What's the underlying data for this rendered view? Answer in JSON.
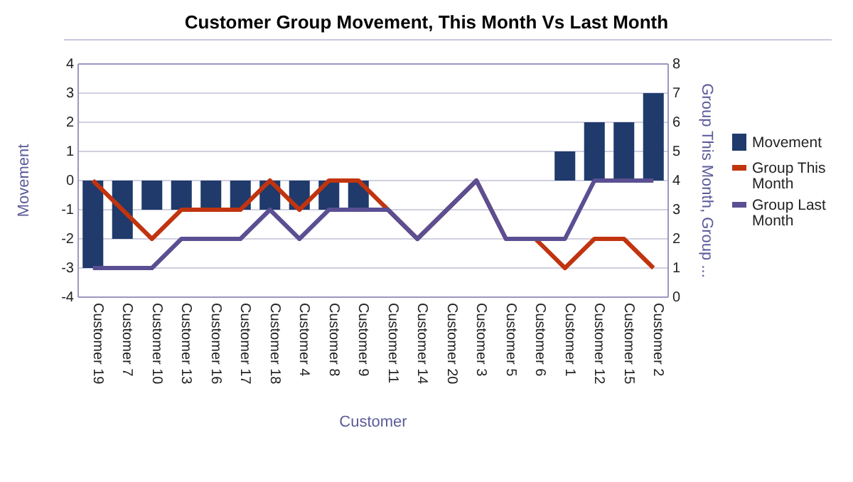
{
  "chart_data": {
    "type": "bar",
    "title": "Customer Group Movement, This Month Vs Last Month",
    "xlabel": "Customer",
    "ylabel": "Movement",
    "y2label": "Group This Month, Group ...",
    "categories": [
      "Customer 19",
      "Customer 7",
      "Customer 10",
      "Customer 13",
      "Customer 16",
      "Customer 17",
      "Customer 18",
      "Customer 4",
      "Customer 8",
      "Customer 9",
      "Customer 11",
      "Customer 14",
      "Customer 20",
      "Customer 3",
      "Customer 5",
      "Customer 6",
      "Customer 1",
      "Customer 12",
      "Customer 15",
      "Customer 2"
    ],
    "series": [
      {
        "name": "Movement",
        "color": "#1f3a6b",
        "values": [
          -3,
          -2,
          -1,
          -1,
          -1,
          -1,
          -1,
          -1,
          -1,
          -1,
          0,
          0,
          0,
          0,
          0,
          0,
          1,
          2,
          2,
          3
        ]
      },
      {
        "name": "Group This Month",
        "type": "line",
        "axis": "y2",
        "color": "#c0340f",
        "values": [
          4,
          3,
          2,
          3,
          3,
          3,
          4,
          3,
          4,
          4,
          3,
          2,
          3,
          4,
          2,
          2,
          1,
          2,
          2,
          1
        ]
      },
      {
        "name": "Group Last Month",
        "type": "line",
        "axis": "y2",
        "color": "#5b4f93",
        "values": [
          1,
          1,
          1,
          2,
          2,
          2,
          3,
          2,
          3,
          3,
          3,
          2,
          3,
          4,
          2,
          2,
          2,
          4,
          4,
          4
        ]
      }
    ],
    "ylim": [
      -4,
      4
    ],
    "yticks": [
      -4,
      -3,
      -2,
      -1,
      0,
      1,
      2,
      3,
      4
    ],
    "y2lim": [
      0,
      8
    ],
    "y2ticks": [
      0,
      1,
      2,
      3,
      4,
      5,
      6,
      7,
      8
    ],
    "grid": "y",
    "legend": "right"
  }
}
